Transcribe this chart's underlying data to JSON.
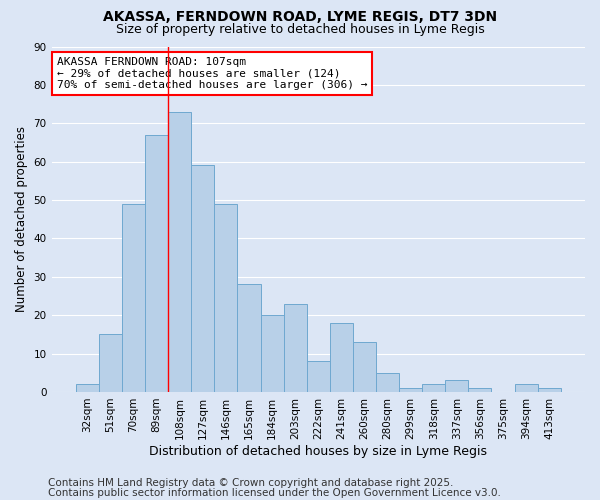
{
  "title1": "AKASSA, FERNDOWN ROAD, LYME REGIS, DT7 3DN",
  "title2": "Size of property relative to detached houses in Lyme Regis",
  "xlabel": "Distribution of detached houses by size in Lyme Regis",
  "ylabel": "Number of detached properties",
  "categories": [
    "32sqm",
    "51sqm",
    "70sqm",
    "89sqm",
    "108sqm",
    "127sqm",
    "146sqm",
    "165sqm",
    "184sqm",
    "203sqm",
    "222sqm",
    "241sqm",
    "260sqm",
    "280sqm",
    "299sqm",
    "318sqm",
    "337sqm",
    "356sqm",
    "375sqm",
    "394sqm",
    "413sqm"
  ],
  "values": [
    2,
    15,
    49,
    67,
    73,
    59,
    49,
    28,
    20,
    23,
    8,
    18,
    13,
    5,
    1,
    2,
    3,
    1,
    0,
    2,
    1
  ],
  "bar_color": "#b8d0e8",
  "bar_edge_color": "#6fa8d0",
  "bar_linewidth": 0.7,
  "red_line_x": 3.5,
  "annotation_text": "AKASSA FERNDOWN ROAD: 107sqm\n← 29% of detached houses are smaller (124)\n70% of semi-detached houses are larger (306) →",
  "annotation_box_color": "white",
  "annotation_box_edge_color": "red",
  "ylim": [
    0,
    90
  ],
  "yticks": [
    0,
    10,
    20,
    30,
    40,
    50,
    60,
    70,
    80,
    90
  ],
  "bg_color": "#dce6f5",
  "grid_color": "white",
  "footer1": "Contains HM Land Registry data © Crown copyright and database right 2025.",
  "footer2": "Contains public sector information licensed under the Open Government Licence v3.0.",
  "title_fontsize": 10,
  "subtitle_fontsize": 9,
  "xlabel_fontsize": 9,
  "ylabel_fontsize": 8.5,
  "tick_fontsize": 7.5,
  "footer_fontsize": 7.5,
  "annot_fontsize": 8
}
